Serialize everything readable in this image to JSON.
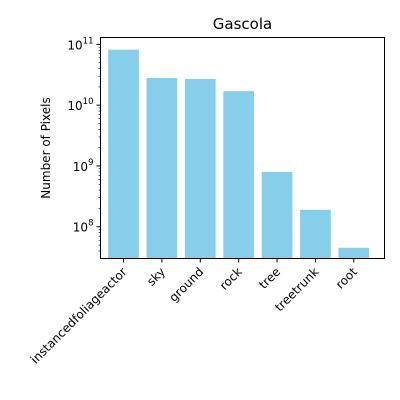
{
  "chart_data": {
    "type": "bar",
    "title": "Gascola",
    "xlabel": "",
    "ylabel": "Number of Pixels",
    "yscale": "log",
    "ylim": [
      30000000,
      130000000000
    ],
    "grid": false,
    "legend": "none",
    "bar_color": "#87CEEB",
    "categories": [
      "instancedfoliageactor",
      "sky",
      "ground",
      "rock",
      "tree",
      "treetrunk",
      "root"
    ],
    "values": [
      82000000000,
      28000000000,
      27000000000,
      17000000000,
      800000000,
      190000000,
      45000000
    ],
    "y_ticks": [
      {
        "base": "10",
        "exp": "8",
        "value": 100000000
      },
      {
        "base": "10",
        "exp": "9",
        "value": 1000000000
      },
      {
        "base": "10",
        "exp": "10",
        "value": 10000000000
      },
      {
        "base": "10",
        "exp": "11",
        "value": 100000000000
      }
    ]
  }
}
